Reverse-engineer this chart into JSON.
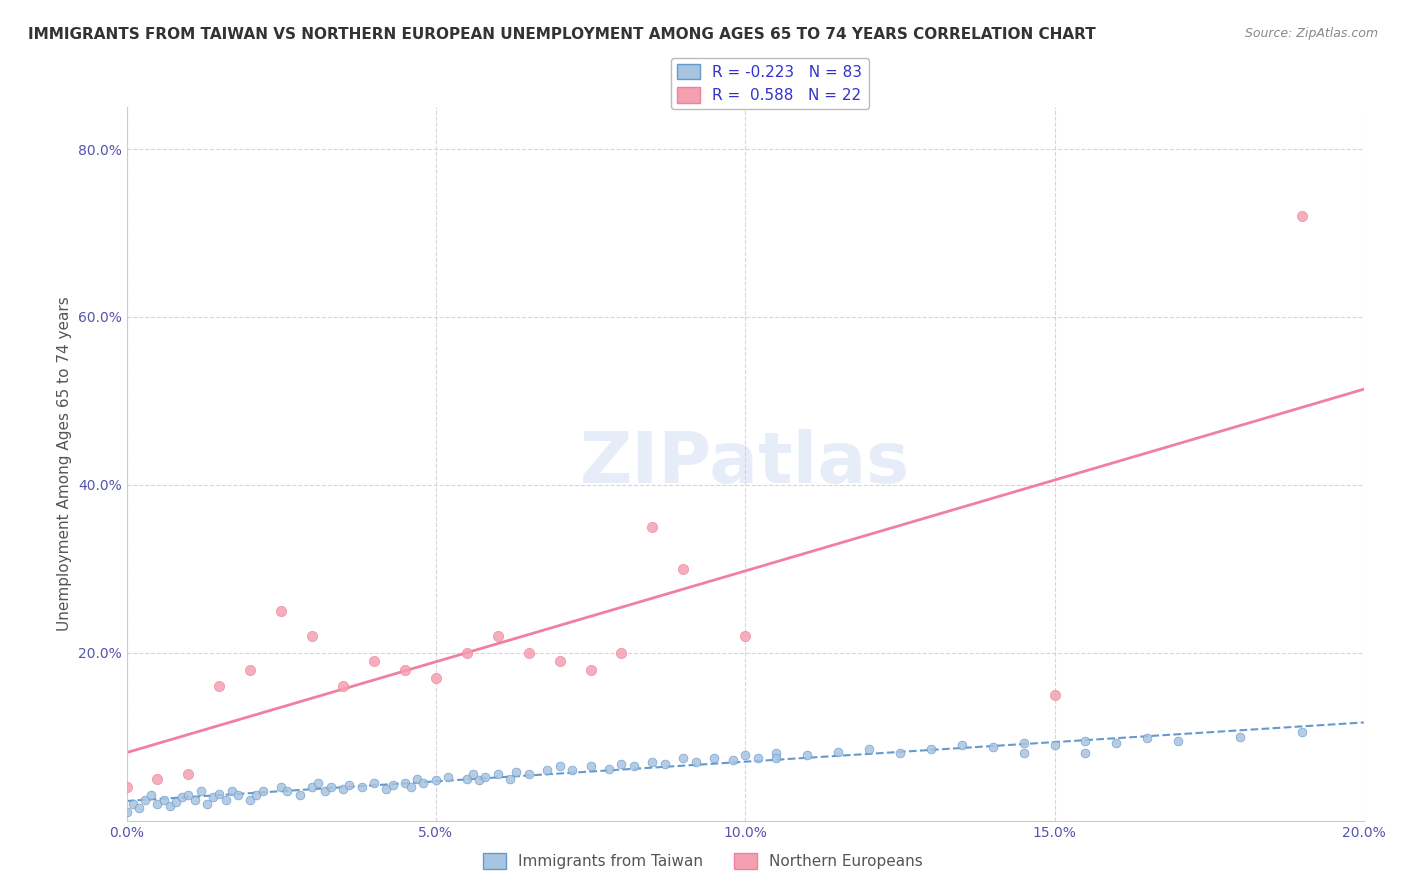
{
  "title": "IMMIGRANTS FROM TAIWAN VS NORTHERN EUROPEAN UNEMPLOYMENT AMONG AGES 65 TO 74 YEARS CORRELATION CHART",
  "source": "Source: ZipAtlas.com",
  "xlabel": "",
  "ylabel": "Unemployment Among Ages 65 to 74 years",
  "xlim": [
    0.0,
    0.2
  ],
  "ylim": [
    0.0,
    0.85
  ],
  "xticks": [
    0.0,
    0.05,
    0.1,
    0.15,
    0.2
  ],
  "xtick_labels": [
    "0.0%",
    "5.0%",
    "10.0%",
    "15.0%",
    "20.0%"
  ],
  "yticks": [
    0.0,
    0.2,
    0.4,
    0.6,
    0.8
  ],
  "ytick_labels": [
    "",
    "20.0%",
    "40.0%",
    "60.0%",
    "80.0%"
  ],
  "series1_label": "Immigrants from Taiwan",
  "series1_R": -0.223,
  "series1_N": 83,
  "series1_color": "#a8c4e0",
  "series1_line_color": "#6699cc",
  "series2_label": "Northern Europeans",
  "series2_R": 0.588,
  "series2_N": 22,
  "series2_color": "#f4a0b0",
  "series2_line_color": "#f080a0",
  "watermark": "ZIPatlas",
  "background_color": "#ffffff",
  "grid_color": "#cccccc",
  "title_fontsize": 11,
  "axis_label_fontsize": 11,
  "tick_fontsize": 10,
  "legend_R_color": "#3333cc",
  "taiwan_scatter_x": [
    0.0,
    0.001,
    0.002,
    0.003,
    0.004,
    0.005,
    0.006,
    0.007,
    0.008,
    0.009,
    0.01,
    0.011,
    0.012,
    0.013,
    0.014,
    0.015,
    0.016,
    0.017,
    0.018,
    0.02,
    0.021,
    0.022,
    0.025,
    0.026,
    0.028,
    0.03,
    0.031,
    0.032,
    0.033,
    0.035,
    0.036,
    0.038,
    0.04,
    0.042,
    0.043,
    0.045,
    0.046,
    0.047,
    0.048,
    0.05,
    0.052,
    0.055,
    0.056,
    0.057,
    0.058,
    0.06,
    0.062,
    0.063,
    0.065,
    0.068,
    0.07,
    0.072,
    0.075,
    0.078,
    0.08,
    0.082,
    0.085,
    0.087,
    0.09,
    0.092,
    0.095,
    0.098,
    0.1,
    0.102,
    0.105,
    0.11,
    0.115,
    0.12,
    0.125,
    0.13,
    0.135,
    0.14,
    0.145,
    0.15,
    0.155,
    0.16,
    0.165,
    0.17,
    0.18,
    0.19,
    0.145,
    0.155,
    0.105
  ],
  "taiwan_scatter_y": [
    0.01,
    0.02,
    0.015,
    0.025,
    0.03,
    0.02,
    0.025,
    0.018,
    0.022,
    0.028,
    0.03,
    0.025,
    0.035,
    0.02,
    0.028,
    0.032,
    0.025,
    0.035,
    0.03,
    0.025,
    0.03,
    0.035,
    0.04,
    0.035,
    0.03,
    0.04,
    0.045,
    0.035,
    0.04,
    0.038,
    0.042,
    0.04,
    0.045,
    0.038,
    0.042,
    0.045,
    0.04,
    0.05,
    0.045,
    0.048,
    0.052,
    0.05,
    0.055,
    0.048,
    0.052,
    0.055,
    0.05,
    0.058,
    0.055,
    0.06,
    0.065,
    0.06,
    0.065,
    0.062,
    0.068,
    0.065,
    0.07,
    0.068,
    0.075,
    0.07,
    0.075,
    0.072,
    0.078,
    0.075,
    0.08,
    0.078,
    0.082,
    0.085,
    0.08,
    0.085,
    0.09,
    0.088,
    0.092,
    0.09,
    0.095,
    0.092,
    0.098,
    0.095,
    0.1,
    0.105,
    0.08,
    0.08,
    0.075
  ],
  "northern_scatter_x": [
    0.0,
    0.005,
    0.01,
    0.015,
    0.02,
    0.025,
    0.03,
    0.035,
    0.04,
    0.045,
    0.05,
    0.055,
    0.06,
    0.065,
    0.07,
    0.075,
    0.08,
    0.085,
    0.09,
    0.1,
    0.15,
    0.19
  ],
  "northern_scatter_y": [
    0.04,
    0.05,
    0.055,
    0.16,
    0.18,
    0.25,
    0.22,
    0.16,
    0.19,
    0.18,
    0.17,
    0.2,
    0.22,
    0.2,
    0.19,
    0.18,
    0.2,
    0.35,
    0.3,
    0.22,
    0.15,
    0.72
  ]
}
